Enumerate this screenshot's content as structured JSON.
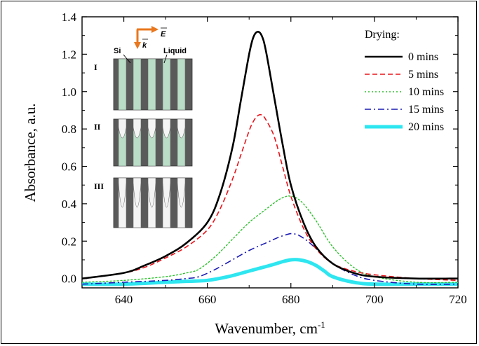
{
  "chart_data": {
    "type": "line",
    "xlabel_main": "Wavenumber, cm",
    "xlabel_sup": "-1",
    "ylabel": "Absorbance, a.u.",
    "xlim": [
      630,
      720
    ],
    "ylim": [
      -0.05,
      1.4
    ],
    "xticks": [
      640,
      660,
      680,
      700,
      720
    ],
    "xtick_labels": [
      "640",
      "660",
      "680",
      "700",
      "720"
    ],
    "yticks": [
      0.0,
      0.2,
      0.4,
      0.6,
      0.8,
      1.0,
      1.2,
      1.4
    ],
    "ytick_labels": [
      "0.0",
      "0.2",
      "0.4",
      "0.6",
      "0.8",
      "1.0",
      "1.2",
      "1.4"
    ],
    "legend_title": "Drying:",
    "legend_position": "top-right",
    "series": [
      {
        "name": "0 mins",
        "color": "#000000",
        "style": "solid",
        "width": 2.6,
        "x": [
          630,
          640,
          645,
          650,
          655,
          660,
          663,
          666,
          668,
          670,
          671,
          672,
          673,
          674,
          676,
          678,
          680,
          683,
          686,
          690,
          695,
          700,
          710,
          720
        ],
        "y": [
          0.0,
          0.03,
          0.07,
          0.12,
          0.19,
          0.3,
          0.45,
          0.7,
          0.95,
          1.2,
          1.29,
          1.32,
          1.3,
          1.22,
          0.97,
          0.72,
          0.5,
          0.3,
          0.17,
          0.08,
          0.03,
          0.01,
          0.0,
          0.0
        ]
      },
      {
        "name": "5 mins",
        "color": "#e8141b",
        "style": "dashed",
        "width": 1.6,
        "x": [
          630,
          640,
          645,
          650,
          655,
          660,
          663,
          666,
          668,
          670,
          671,
          672,
          673,
          674,
          676,
          678,
          680,
          683,
          686,
          690,
          695,
          700,
          710,
          720
        ],
        "y": [
          0.0,
          0.03,
          0.06,
          0.11,
          0.17,
          0.26,
          0.37,
          0.53,
          0.66,
          0.79,
          0.84,
          0.87,
          0.875,
          0.85,
          0.76,
          0.6,
          0.44,
          0.27,
          0.16,
          0.08,
          0.04,
          0.02,
          0.0,
          -0.01
        ]
      },
      {
        "name": "10 mins",
        "color": "#2ec02e",
        "style": "dotted",
        "width": 1.4,
        "x": [
          630,
          640,
          650,
          655,
          658,
          662,
          666,
          670,
          674,
          677,
          679,
          680,
          681,
          683,
          686,
          690,
          695,
          700,
          710,
          720
        ],
        "y": [
          -0.02,
          -0.01,
          0.01,
          0.03,
          0.05,
          0.12,
          0.21,
          0.3,
          0.37,
          0.42,
          0.44,
          0.44,
          0.435,
          0.4,
          0.31,
          0.17,
          0.06,
          0.01,
          -0.02,
          -0.02
        ]
      },
      {
        "name": "15 mins",
        "color": "#1a1ab4",
        "style": "dashdot",
        "width": 1.6,
        "x": [
          630,
          640,
          650,
          655,
          658,
          662,
          666,
          670,
          674,
          677,
          679,
          680,
          681,
          682,
          684,
          687,
          690,
          695,
          700,
          710,
          720
        ],
        "y": [
          -0.03,
          -0.02,
          -0.01,
          0.0,
          0.01,
          0.05,
          0.1,
          0.15,
          0.19,
          0.22,
          0.235,
          0.24,
          0.238,
          0.23,
          0.2,
          0.14,
          0.08,
          0.02,
          -0.01,
          -0.03,
          -0.03
        ]
      },
      {
        "name": "20 mins",
        "color": "#2ee6f0",
        "style": "solid",
        "width": 5,
        "x": [
          630,
          640,
          650,
          655,
          660,
          665,
          670,
          675,
          678,
          680,
          682,
          684,
          686,
          688,
          690,
          695,
          700,
          710,
          720
        ],
        "y": [
          -0.03,
          -0.03,
          -0.02,
          -0.015,
          -0.01,
          0.01,
          0.04,
          0.07,
          0.09,
          0.1,
          0.1,
          0.09,
          0.07,
          0.04,
          0.01,
          -0.02,
          -0.03,
          -0.03,
          -0.03
        ]
      }
    ]
  },
  "inset": {
    "beam_e_label": "E",
    "beam_k_label": "k",
    "si_label": "Si",
    "liquid_label": "Liquid",
    "panel_labels": [
      "I",
      "II",
      "III"
    ],
    "colors": {
      "silicon": "#5a5a5a",
      "liquid": "#b9ddc6",
      "arrow": "#e8771e"
    }
  }
}
